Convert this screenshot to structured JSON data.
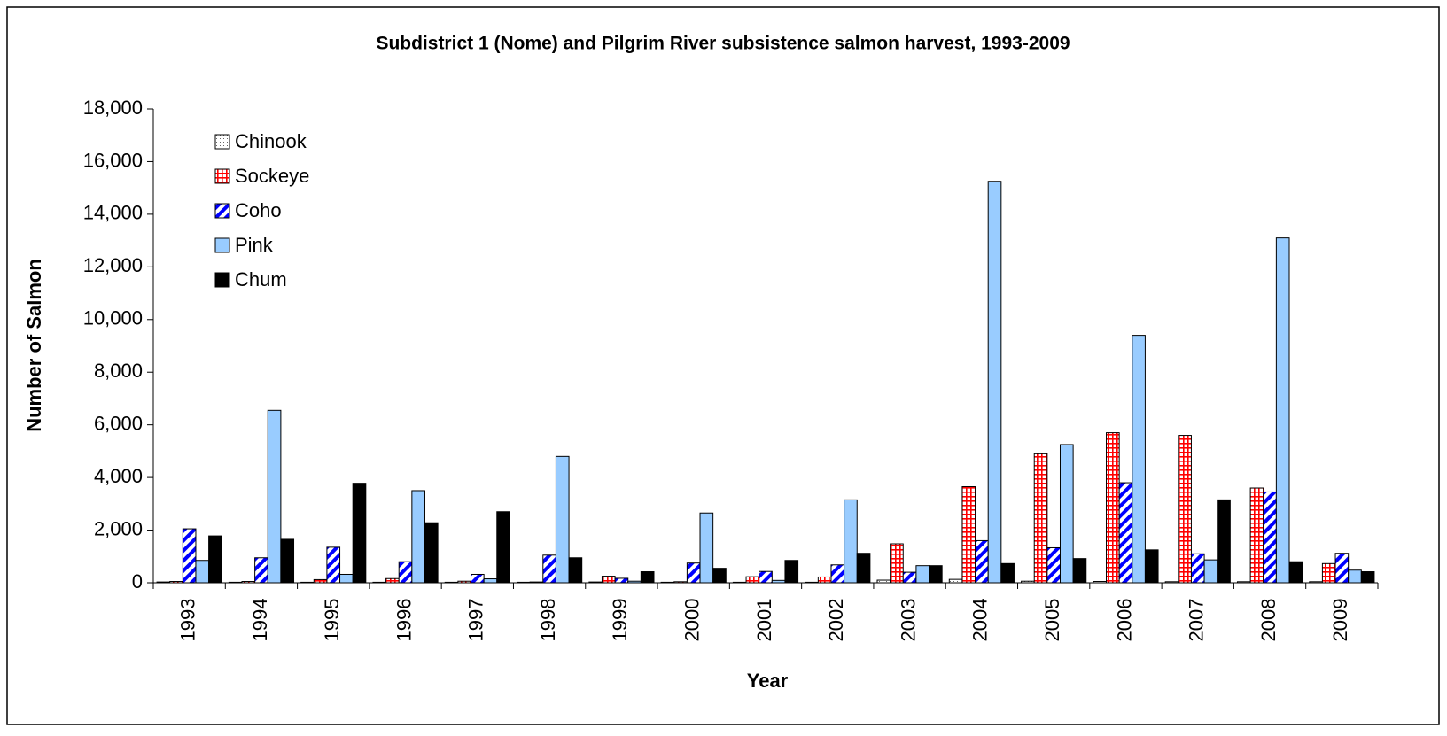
{
  "chart_data": {
    "type": "bar",
    "title": "Subdistrict 1 (Nome) and Pilgrim River subsistence salmon harvest, 1993-2009",
    "x_label": "Year",
    "y_label": "Number of Salmon",
    "categories": [
      "1993",
      "1994",
      "1995",
      "1996",
      "1997",
      "1998",
      "1999",
      "2000",
      "2001",
      "2002",
      "2003",
      "2004",
      "2005",
      "2006",
      "2007",
      "2008",
      "2009"
    ],
    "series": [
      {
        "name": "Chinook",
        "color": "#ffffff",
        "values": [
          30,
          20,
          20,
          20,
          20,
          20,
          30,
          20,
          20,
          20,
          100,
          130,
          60,
          50,
          40,
          40,
          40
        ]
      },
      {
        "name": "Sockeye",
        "color": "#ff0000",
        "values": [
          50,
          50,
          120,
          160,
          60,
          30,
          250,
          40,
          230,
          220,
          1480,
          3650,
          4900,
          5700,
          5600,
          3600,
          730
        ]
      },
      {
        "name": "Coho",
        "color": "#0000ff",
        "values": [
          2050,
          950,
          1350,
          800,
          320,
          1050,
          170,
          750,
          430,
          680,
          400,
          1600,
          1330,
          3800,
          1100,
          3450,
          1120
        ]
      },
      {
        "name": "Pink",
        "color": "#99ccff",
        "values": [
          850,
          6550,
          320,
          3500,
          150,
          4800,
          60,
          2650,
          90,
          3150,
          650,
          15250,
          5250,
          9400,
          870,
          13100,
          480
        ]
      },
      {
        "name": "Chum",
        "color": "#000000",
        "values": [
          1780,
          1650,
          3780,
          2280,
          2700,
          950,
          420,
          550,
          850,
          1120,
          650,
          730,
          920,
          1250,
          3150,
          800,
          420
        ]
      }
    ],
    "ylim": [
      0,
      18000
    ],
    "yticks": [
      0,
      {
        "value": 2000,
        "label": "2,000"
      },
      {
        "value": 4000,
        "label": "4,000"
      },
      {
        "value": 6000,
        "label": "6,000"
      },
      {
        "value": 8000,
        "label": "8,000"
      },
      {
        "value": 10000,
        "label": "10,000"
      },
      {
        "value": 12000,
        "label": "12,000"
      },
      {
        "value": 14000,
        "label": "14,000"
      },
      {
        "value": 16000,
        "label": "16,000"
      },
      {
        "value": 18000,
        "label": "18,000"
      }
    ],
    "legend": "upper left"
  }
}
